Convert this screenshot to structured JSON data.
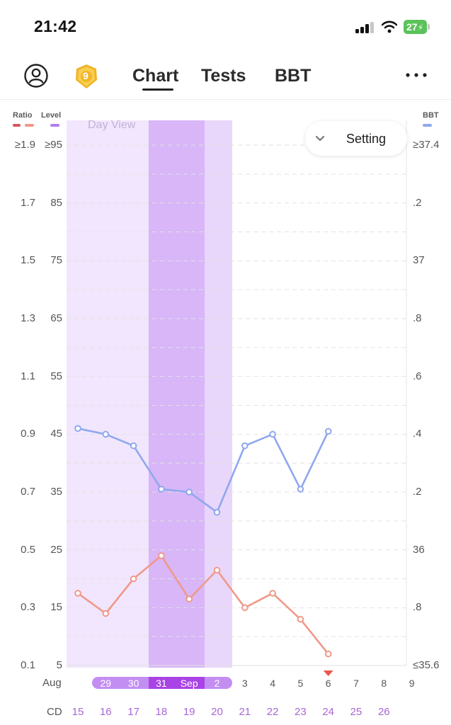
{
  "status_bar": {
    "time": "21:42",
    "battery": "27"
  },
  "nav": {
    "badge_number": "9",
    "tabs": [
      "Chart",
      "Tests",
      "BBT"
    ],
    "active_tab": "Chart"
  },
  "legend": {
    "ratio": "Ratio",
    "level": "Level",
    "bbt": "BBT",
    "colors": {
      "ratio_dark": "#d9545c",
      "ratio_light": "#f0998a",
      "level": "#b57cf0",
      "bbt": "#8fa8ee"
    }
  },
  "chart_controls": {
    "day_view": "Day View",
    "setting": "Setting"
  },
  "chart_data": {
    "type": "line",
    "left_axis_ratio_ticks": [
      "≥1.9",
      "1.7",
      "1.5",
      "1.3",
      "1.1",
      "0.9",
      "0.7",
      "0.5",
      "0.3",
      "0.1"
    ],
    "left_axis_level_ticks": [
      "≥95",
      "85",
      "75",
      "65",
      "55",
      "45",
      "35",
      "25",
      "15",
      "5"
    ],
    "right_axis_bbt_ticks": [
      "≥37.4",
      ".2",
      "37",
      ".8",
      ".6",
      ".4",
      ".2",
      "36",
      ".8",
      "≤35.6"
    ],
    "ylim_ratio": [
      0.1,
      1.9
    ],
    "ylim_level": [
      5,
      95
    ],
    "ylim_bbt": [
      35.6,
      37.4
    ],
    "month_label": "Aug",
    "x_dates": [
      "29",
      "30",
      "31",
      "Sep",
      "2",
      "3",
      "4",
      "5",
      "6",
      "7",
      "8",
      "9"
    ],
    "cd_label": "CD",
    "cycle_days": [
      "15",
      "16",
      "17",
      "18",
      "19",
      "20",
      "21",
      "22",
      "23",
      "24",
      "25",
      "26"
    ],
    "series": [
      {
        "name": "BBT",
        "color": "#8fa8ee",
        "values": [
          36.42,
          36.4,
          36.36,
          36.21,
          36.2,
          36.13,
          36.36,
          36.4,
          36.21,
          36.41
        ]
      },
      {
        "name": "Ratio",
        "color": "#f0998a",
        "values": [
          0.35,
          0.28,
          0.4,
          0.48,
          0.33,
          0.43,
          0.3,
          0.35,
          0.26,
          0.14
        ]
      }
    ],
    "fertile_window_days": [
      "15",
      "16",
      "17",
      "18",
      "19",
      "20"
    ],
    "peak_days": [
      "18",
      "19"
    ],
    "today_marker_cd": "24",
    "grid": true
  }
}
